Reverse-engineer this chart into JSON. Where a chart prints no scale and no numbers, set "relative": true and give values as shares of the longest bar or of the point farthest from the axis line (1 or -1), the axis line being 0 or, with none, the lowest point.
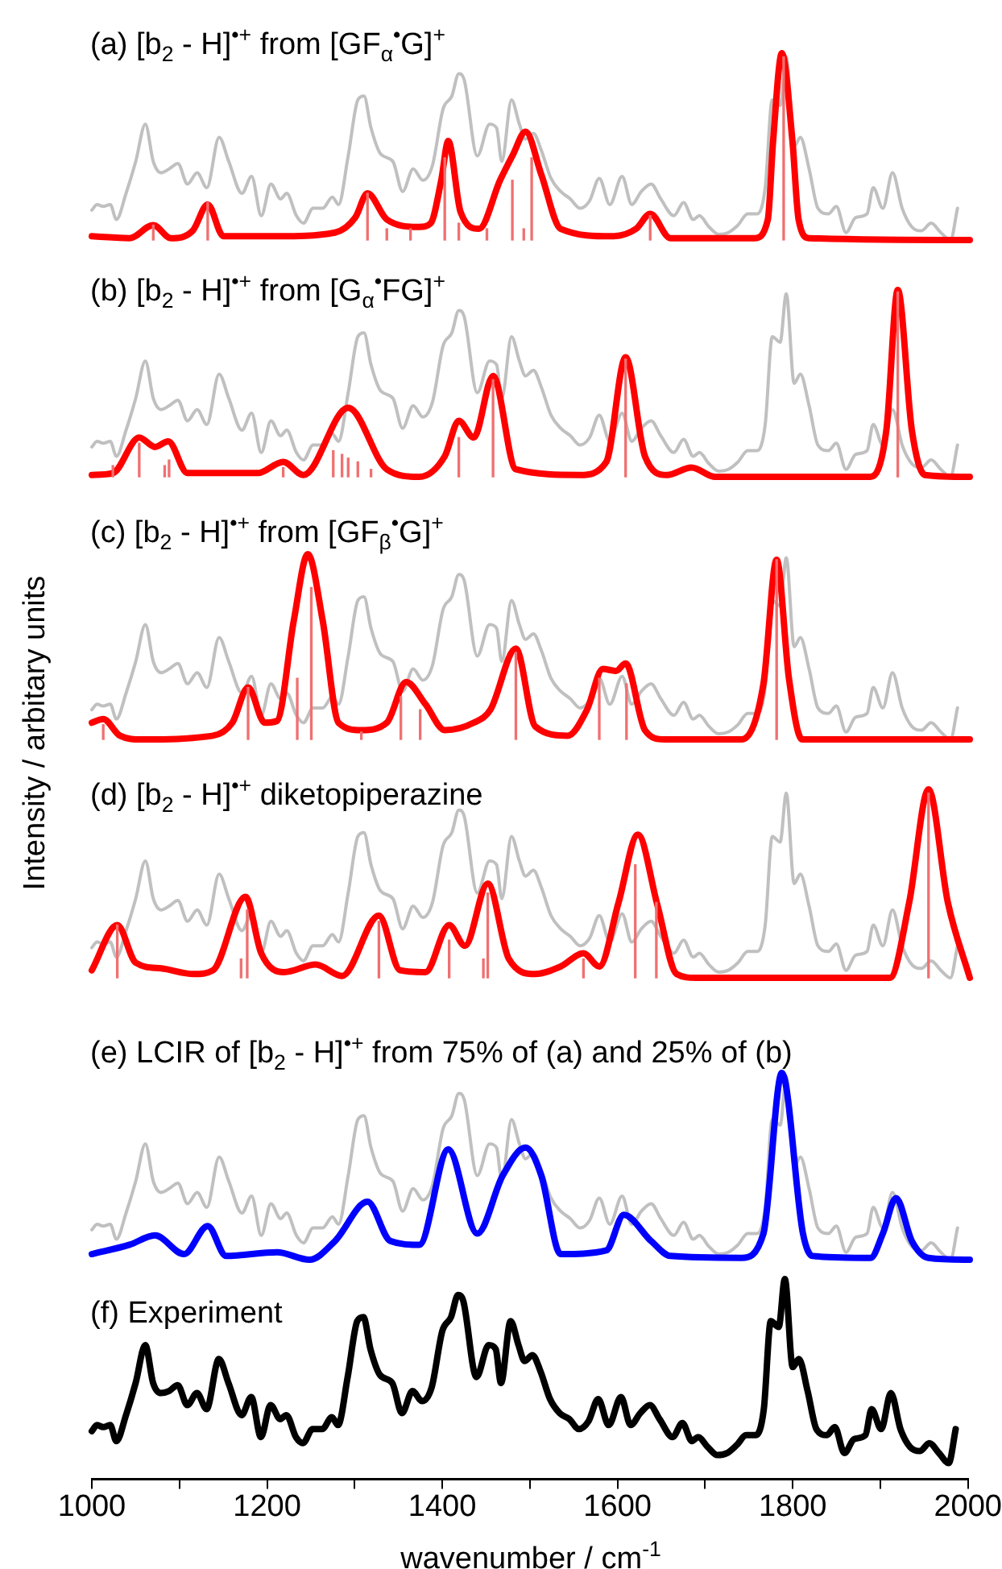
{
  "chart_data": [
    {
      "type": "line",
      "title": "(a) [b$_{2}$ - H]$^{•+}$ from [GF$_{α}$$^{•}$G]$^{+}$",
      "relative": true,
      "xlim": [
        1000,
        2000
      ],
      "tick_labels": false,
      "grid": false,
      "legend": false,
      "marker": "none",
      "series": [
        {
          "color": "#c0c0c0",
          "x": [
            1000,
            1006,
            1013,
            1021,
            1028,
            1039,
            1050,
            1061,
            1070,
            1079,
            1088,
            1098,
            1109,
            1120,
            1131,
            1145,
            1156,
            1171,
            1182,
            1193,
            1204,
            1215,
            1222,
            1233,
            1241,
            1252,
            1263,
            1274,
            1281,
            1292,
            1303,
            1310,
            1318,
            1329,
            1343,
            1354,
            1366,
            1377,
            1388,
            1400,
            1410,
            1418,
            1424,
            1439,
            1453,
            1461,
            1467,
            1478,
            1487,
            1494,
            1503,
            1512,
            1523,
            1534,
            1545,
            1556,
            1567,
            1578,
            1590,
            1604,
            1615,
            1626,
            1637,
            1648,
            1663,
            1674,
            1685,
            1692,
            1703,
            1714,
            1725,
            1736,
            1747,
            1758,
            1767,
            1775,
            1784,
            1791,
            1800,
            1807,
            1817,
            1827,
            1839,
            1848,
            1859,
            1870,
            1883,
            1890,
            1901,
            1912,
            1923,
            1934,
            1945,
            1956,
            1967,
            1978,
            1986
          ],
          "values": [
            0.16,
            0.19,
            0.18,
            0.19,
            0.11,
            0.25,
            0.42,
            0.62,
            0.42,
            0.36,
            0.38,
            0.41,
            0.3,
            0.36,
            0.28,
            0.55,
            0.42,
            0.25,
            0.34,
            0.13,
            0.3,
            0.22,
            0.25,
            0.13,
            0.09,
            0.17,
            0.17,
            0.23,
            0.19,
            0.45,
            0.75,
            0.77,
            0.6,
            0.46,
            0.42,
            0.26,
            0.38,
            0.32,
            0.4,
            0.7,
            0.77,
            0.89,
            0.86,
            0.45,
            0.62,
            0.6,
            0.42,
            0.75,
            0.62,
            0.54,
            0.57,
            0.48,
            0.33,
            0.26,
            0.22,
            0.17,
            0.21,
            0.33,
            0.19,
            0.34,
            0.19,
            0.26,
            0.3,
            0.22,
            0.13,
            0.2,
            0.11,
            0.13,
            0.07,
            0.03,
            0.04,
            0.08,
            0.14,
            0.14,
            0.28,
            0.75,
            0.72,
            0.98,
            0.5,
            0.55,
            0.38,
            0.17,
            0.14,
            0.18,
            0.04,
            0.12,
            0.14,
            0.28,
            0.17,
            0.36,
            0.17,
            0.07,
            0.05,
            0.09,
            0.04,
            0,
            0.17
          ]
        },
        {
          "type": "bar",
          "color": "#f07070",
          "x": [
            1070,
            1132,
            1314,
            1336,
            1363,
            1402,
            1418,
            1450,
            1479,
            1492,
            1501,
            1636,
            1788
          ],
          "values": [
            0.08,
            0.2,
            0.25,
            0.06,
            0.06,
            0.44,
            0.09,
            0.06,
            0.32,
            0.06,
            0.44,
            0.13,
            0.98
          ]
        },
        {
          "color": "#ff0000",
          "x": [
            1000,
            1043,
            1070,
            1090,
            1115,
            1132,
            1150,
            1211,
            1277,
            1300,
            1314,
            1336,
            1373,
            1386,
            1398,
            1406,
            1420,
            1441,
            1465,
            1480,
            1494,
            1512,
            1534,
            1593,
            1620,
            1636,
            1659,
            1755,
            1770,
            1776,
            1786,
            1798,
            1805,
            1817,
            2000
          ],
          "values": [
            0.02,
            0.01,
            0.08,
            0.01,
            0.05,
            0.19,
            0.02,
            0.02,
            0.04,
            0.12,
            0.25,
            0.11,
            0.07,
            0.09,
            0.32,
            0.53,
            0.15,
            0.06,
            0.32,
            0.46,
            0.58,
            0.35,
            0.06,
            0.02,
            0.06,
            0.14,
            0.01,
            0.01,
            0.11,
            0.53,
            1,
            0.53,
            0.11,
            0.01,
            0
          ]
        }
      ]
    },
    {
      "type": "line",
      "title": "(b) [b$_{2}$ - H]$^{•+}$ from [G$_{α}$$^{•}$FG]$^{+}$",
      "relative": true,
      "xlim": [
        1000,
        2000
      ],
      "tick_labels": false,
      "grid": false,
      "legend": false,
      "marker": "none",
      "series": [
        {
          "color": "#c0c0c0",
          "x": [
            1000,
            1006,
            1013,
            1021,
            1028,
            1039,
            1050,
            1061,
            1070,
            1079,
            1088,
            1098,
            1109,
            1120,
            1131,
            1145,
            1156,
            1171,
            1182,
            1193,
            1204,
            1215,
            1222,
            1233,
            1241,
            1252,
            1263,
            1274,
            1281,
            1292,
            1303,
            1310,
            1318,
            1329,
            1343,
            1354,
            1366,
            1377,
            1388,
            1400,
            1410,
            1418,
            1424,
            1439,
            1453,
            1461,
            1467,
            1478,
            1487,
            1494,
            1503,
            1512,
            1523,
            1534,
            1545,
            1556,
            1567,
            1578,
            1590,
            1604,
            1615,
            1626,
            1637,
            1648,
            1663,
            1674,
            1685,
            1692,
            1703,
            1714,
            1725,
            1736,
            1747,
            1758,
            1767,
            1775,
            1784,
            1791,
            1800,
            1807,
            1817,
            1827,
            1839,
            1848,
            1859,
            1870,
            1883,
            1890,
            1901,
            1912,
            1923,
            1934,
            1945,
            1956,
            1967,
            1978,
            1986
          ],
          "values": [
            0.16,
            0.19,
            0.18,
            0.19,
            0.11,
            0.25,
            0.42,
            0.62,
            0.42,
            0.36,
            0.38,
            0.41,
            0.3,
            0.36,
            0.28,
            0.55,
            0.42,
            0.25,
            0.34,
            0.13,
            0.3,
            0.22,
            0.25,
            0.13,
            0.09,
            0.17,
            0.17,
            0.23,
            0.19,
            0.45,
            0.75,
            0.77,
            0.6,
            0.46,
            0.42,
            0.26,
            0.38,
            0.32,
            0.4,
            0.7,
            0.77,
            0.89,
            0.86,
            0.45,
            0.62,
            0.6,
            0.42,
            0.75,
            0.62,
            0.54,
            0.57,
            0.48,
            0.33,
            0.26,
            0.22,
            0.17,
            0.21,
            0.33,
            0.19,
            0.34,
            0.19,
            0.26,
            0.3,
            0.22,
            0.13,
            0.2,
            0.11,
            0.13,
            0.07,
            0.03,
            0.04,
            0.08,
            0.14,
            0.14,
            0.28,
            0.75,
            0.72,
            0.98,
            0.5,
            0.55,
            0.38,
            0.17,
            0.14,
            0.18,
            0.04,
            0.12,
            0.14,
            0.28,
            0.17,
            0.36,
            0.17,
            0.07,
            0.05,
            0.09,
            0.04,
            0,
            0.17
          ]
        },
        {
          "type": "bar",
          "color": "#f07070",
          "x": [
            1024,
            1054,
            1083,
            1088,
            1218,
            1275,
            1285,
            1292,
            1303,
            1318,
            1418,
            1457,
            1608,
            1918
          ],
          "values": [
            0.06,
            0.18,
            0.06,
            0.09,
            0.05,
            0.14,
            0.12,
            0.1,
            0.08,
            0.04,
            0.21,
            0.52,
            0.63,
            0.99
          ]
        },
        {
          "color": "#ff0000",
          "x": [
            1000,
            1024,
            1054,
            1072,
            1087,
            1109,
            1189,
            1218,
            1241,
            1292,
            1336,
            1373,
            1402,
            1418,
            1435,
            1457,
            1483,
            1556,
            1586,
            1608,
            1630,
            1655,
            1683,
            1710,
            1887,
            1905,
            1918,
            1934,
            1949,
            2000
          ],
          "values": [
            0.01,
            0.02,
            0.21,
            0.16,
            0.19,
            0.02,
            0.02,
            0.08,
            0.01,
            0.37,
            0.04,
            0,
            0.11,
            0.3,
            0.21,
            0.54,
            0.04,
            0.01,
            0.08,
            0.64,
            0.11,
            0.01,
            0.05,
            0,
            0,
            0.25,
            1,
            0.25,
            0.01,
            0
          ]
        }
      ]
    },
    {
      "type": "line",
      "title": "(c) [b$_{2}$ - H]$^{•+}$ from [GF$_{β}$$^{•}$G]$^{+}$",
      "ylabel": "Intensity / arbitary units",
      "relative": true,
      "xlim": [
        1000,
        2000
      ],
      "tick_labels": false,
      "grid": false,
      "legend": false,
      "marker": "none",
      "series": [
        {
          "color": "#c0c0c0",
          "x": [
            1000,
            1006,
            1013,
            1021,
            1028,
            1039,
            1050,
            1061,
            1070,
            1079,
            1088,
            1098,
            1109,
            1120,
            1131,
            1145,
            1156,
            1171,
            1182,
            1193,
            1204,
            1215,
            1222,
            1233,
            1241,
            1252,
            1263,
            1274,
            1281,
            1292,
            1303,
            1310,
            1318,
            1329,
            1343,
            1354,
            1366,
            1377,
            1388,
            1400,
            1410,
            1418,
            1424,
            1439,
            1453,
            1461,
            1467,
            1478,
            1487,
            1494,
            1503,
            1512,
            1523,
            1534,
            1545,
            1556,
            1567,
            1578,
            1590,
            1604,
            1615,
            1626,
            1637,
            1648,
            1663,
            1674,
            1685,
            1692,
            1703,
            1714,
            1725,
            1736,
            1747,
            1758,
            1767,
            1775,
            1784,
            1791,
            1800,
            1807,
            1817,
            1827,
            1839,
            1848,
            1859,
            1870,
            1883,
            1890,
            1901,
            1912,
            1923,
            1934,
            1945,
            1956,
            1967,
            1978,
            1986
          ],
          "values": [
            0.16,
            0.19,
            0.18,
            0.19,
            0.11,
            0.25,
            0.42,
            0.62,
            0.42,
            0.36,
            0.38,
            0.41,
            0.3,
            0.36,
            0.28,
            0.55,
            0.42,
            0.25,
            0.34,
            0.13,
            0.3,
            0.22,
            0.25,
            0.13,
            0.09,
            0.17,
            0.17,
            0.23,
            0.19,
            0.45,
            0.75,
            0.77,
            0.6,
            0.46,
            0.42,
            0.26,
            0.38,
            0.32,
            0.4,
            0.7,
            0.77,
            0.89,
            0.86,
            0.45,
            0.62,
            0.6,
            0.42,
            0.75,
            0.62,
            0.54,
            0.57,
            0.48,
            0.33,
            0.26,
            0.22,
            0.17,
            0.21,
            0.33,
            0.19,
            0.34,
            0.19,
            0.26,
            0.3,
            0.22,
            0.13,
            0.2,
            0.11,
            0.13,
            0.07,
            0.03,
            0.04,
            0.08,
            0.14,
            0.14,
            0.28,
            0.75,
            0.72,
            0.98,
            0.5,
            0.55,
            0.38,
            0.17,
            0.14,
            0.18,
            0.04,
            0.12,
            0.14,
            0.28,
            0.17,
            0.36,
            0.17,
            0.07,
            0.05,
            0.09,
            0.04,
            0,
            0.17
          ]
        },
        {
          "type": "bar",
          "color": "#f07070",
          "x": [
            1013,
            1178,
            1234,
            1250,
            1307,
            1352,
            1374,
            1483,
            1578,
            1609,
            1780
          ],
          "values": [
            0.08,
            0.28,
            0.33,
            0.82,
            0.04,
            0.23,
            0.16,
            0.47,
            0.33,
            0.3,
            0.97
          ]
        },
        {
          "color": "#ff0000",
          "x": [
            1000,
            1013,
            1032,
            1057,
            1138,
            1160,
            1178,
            1197,
            1211,
            1230,
            1246,
            1263,
            1281,
            1307,
            1336,
            1358,
            1380,
            1402,
            1435,
            1454,
            1483,
            1505,
            1542,
            1564,
            1582,
            1597,
            1608,
            1630,
            1652,
            1740,
            1765,
            1780,
            1794,
            1809,
            2000
          ],
          "values": [
            0.09,
            0.11,
            0.02,
            0,
            0.02,
            0.09,
            0.28,
            0.09,
            0.1,
            0.64,
            1,
            0.64,
            0.09,
            0.05,
            0.09,
            0.31,
            0.19,
            0.05,
            0.09,
            0.16,
            0.49,
            0.07,
            0.02,
            0.16,
            0.38,
            0.37,
            0.41,
            0.05,
            0,
            0,
            0.3,
            0.97,
            0.33,
            0,
            0
          ]
        }
      ]
    },
    {
      "type": "line",
      "title": "(d) [b$_{2}$ - H]$^{•+}$ diketopiperazine",
      "relative": true,
      "xlim": [
        1000,
        2000
      ],
      "tick_labels": false,
      "grid": false,
      "legend": false,
      "marker": "none",
      "series": [
        {
          "color": "#c0c0c0",
          "x": [
            1000,
            1006,
            1013,
            1021,
            1028,
            1039,
            1050,
            1061,
            1070,
            1079,
            1088,
            1098,
            1109,
            1120,
            1131,
            1145,
            1156,
            1171,
            1182,
            1193,
            1204,
            1215,
            1222,
            1233,
            1241,
            1252,
            1263,
            1274,
            1281,
            1292,
            1303,
            1310,
            1318,
            1329,
            1343,
            1354,
            1366,
            1377,
            1388,
            1400,
            1410,
            1418,
            1424,
            1439,
            1453,
            1461,
            1467,
            1478,
            1487,
            1494,
            1503,
            1512,
            1523,
            1534,
            1545,
            1556,
            1567,
            1578,
            1590,
            1604,
            1615,
            1626,
            1637,
            1648,
            1663,
            1674,
            1685,
            1692,
            1703,
            1714,
            1725,
            1736,
            1747,
            1758,
            1767,
            1775,
            1784,
            1791,
            1800,
            1807,
            1817,
            1827,
            1839,
            1848,
            1859,
            1870,
            1883,
            1890,
            1901,
            1912,
            1923,
            1934,
            1945,
            1956,
            1967,
            1978,
            1986
          ],
          "values": [
            0.16,
            0.19,
            0.18,
            0.19,
            0.11,
            0.25,
            0.42,
            0.62,
            0.42,
            0.36,
            0.38,
            0.41,
            0.3,
            0.36,
            0.28,
            0.55,
            0.42,
            0.25,
            0.34,
            0.13,
            0.3,
            0.22,
            0.25,
            0.13,
            0.09,
            0.17,
            0.17,
            0.23,
            0.19,
            0.45,
            0.75,
            0.77,
            0.6,
            0.46,
            0.42,
            0.26,
            0.38,
            0.32,
            0.4,
            0.7,
            0.77,
            0.89,
            0.86,
            0.45,
            0.62,
            0.6,
            0.42,
            0.75,
            0.62,
            0.54,
            0.57,
            0.48,
            0.33,
            0.26,
            0.22,
            0.17,
            0.21,
            0.33,
            0.19,
            0.34,
            0.19,
            0.26,
            0.3,
            0.22,
            0.13,
            0.2,
            0.11,
            0.13,
            0.07,
            0.03,
            0.04,
            0.08,
            0.14,
            0.14,
            0.28,
            0.75,
            0.72,
            0.98,
            0.5,
            0.55,
            0.38,
            0.17,
            0.14,
            0.18,
            0.04,
            0.12,
            0.14,
            0.28,
            0.17,
            0.36,
            0.17,
            0.07,
            0.05,
            0.09,
            0.04,
            0,
            0.17
          ]
        },
        {
          "type": "bar",
          "color": "#f07070",
          "x": [
            1029,
            1170,
            1177,
            1327,
            1407,
            1446,
            1451,
            1560,
            1619,
            1643,
            1953
          ],
          "values": [
            0.28,
            0.1,
            0.36,
            0.3,
            0.2,
            0.1,
            0.45,
            0.1,
            0.6,
            0.4,
            0.98
          ]
        },
        {
          "color": "#ff0000",
          "x": [
            1000,
            1029,
            1050,
            1079,
            1116,
            1138,
            1175,
            1193,
            1219,
            1255,
            1285,
            1327,
            1351,
            1380,
            1407,
            1425,
            1451,
            1475,
            1505,
            1534,
            1560,
            1578,
            1600,
            1622,
            1644,
            1666,
            1688,
            1909,
            1931,
            1953,
            1975,
            2000
          ],
          "values": [
            0.04,
            0.28,
            0.08,
            0.05,
            0.02,
            0.04,
            0.43,
            0.13,
            0.03,
            0.07,
            0.01,
            0.33,
            0.04,
            0.03,
            0.28,
            0.17,
            0.5,
            0.1,
            0.02,
            0.06,
            0.13,
            0.06,
            0.4,
            0.76,
            0.39,
            0.02,
            0,
            0,
            0.4,
            1,
            0.4,
            0
          ]
        }
      ]
    },
    {
      "type": "line",
      "title": "(e) LCIR of [b$_{2}$ - H]$^{•+}$ from 75% of (a) and 25% of (b)",
      "relative": true,
      "xlim": [
        1000,
        2000
      ],
      "tick_labels": false,
      "grid": false,
      "legend": false,
      "marker": "none",
      "series": [
        {
          "color": "#c0c0c0",
          "x": [
            1000,
            1006,
            1013,
            1021,
            1028,
            1039,
            1050,
            1061,
            1070,
            1079,
            1088,
            1098,
            1109,
            1120,
            1131,
            1145,
            1156,
            1171,
            1182,
            1193,
            1204,
            1215,
            1222,
            1233,
            1241,
            1252,
            1263,
            1274,
            1281,
            1292,
            1303,
            1310,
            1318,
            1329,
            1343,
            1354,
            1366,
            1377,
            1388,
            1400,
            1410,
            1418,
            1424,
            1439,
            1453,
            1461,
            1467,
            1478,
            1487,
            1494,
            1503,
            1512,
            1523,
            1534,
            1545,
            1556,
            1567,
            1578,
            1590,
            1604,
            1615,
            1626,
            1637,
            1648,
            1663,
            1674,
            1685,
            1692,
            1703,
            1714,
            1725,
            1736,
            1747,
            1758,
            1767,
            1775,
            1784,
            1791,
            1800,
            1807,
            1817,
            1827,
            1839,
            1848,
            1859,
            1870,
            1883,
            1890,
            1901,
            1912,
            1923,
            1934,
            1945,
            1956,
            1967,
            1978,
            1986
          ],
          "values": [
            0.16,
            0.19,
            0.18,
            0.19,
            0.11,
            0.25,
            0.42,
            0.62,
            0.42,
            0.36,
            0.38,
            0.41,
            0.3,
            0.36,
            0.28,
            0.55,
            0.42,
            0.25,
            0.34,
            0.13,
            0.3,
            0.22,
            0.25,
            0.13,
            0.09,
            0.17,
            0.17,
            0.23,
            0.19,
            0.45,
            0.75,
            0.77,
            0.6,
            0.46,
            0.42,
            0.26,
            0.38,
            0.32,
            0.4,
            0.7,
            0.77,
            0.89,
            0.86,
            0.45,
            0.62,
            0.6,
            0.42,
            0.75,
            0.62,
            0.54,
            0.57,
            0.48,
            0.33,
            0.26,
            0.22,
            0.17,
            0.21,
            0.33,
            0.19,
            0.34,
            0.19,
            0.26,
            0.3,
            0.22,
            0.13,
            0.2,
            0.11,
            0.13,
            0.07,
            0.03,
            0.04,
            0.08,
            0.14,
            0.14,
            0.28,
            0.75,
            0.72,
            0.98,
            0.5,
            0.55,
            0.38,
            0.17,
            0.14,
            0.18,
            0.04,
            0.12,
            0.14,
            0.28,
            0.17,
            0.36,
            0.17,
            0.07,
            0.05,
            0.09,
            0.04,
            0,
            0.17
          ]
        },
        {
          "color": "#0000ff",
          "x": [
            1000,
            1043,
            1072,
            1105,
            1132,
            1153,
            1211,
            1248,
            1277,
            1314,
            1340,
            1373,
            1406,
            1439,
            1468,
            1494,
            1512,
            1534,
            1586,
            1606,
            1637,
            1659,
            1740,
            1765,
            1786,
            1810,
            1821,
            1887,
            1901,
            1916,
            1934,
            1953,
            2000
          ],
          "values": [
            0.03,
            0.08,
            0.13,
            0.03,
            0.18,
            0.02,
            0.04,
            0,
            0.1,
            0.31,
            0.1,
            0.08,
            0.59,
            0.14,
            0.45,
            0.6,
            0.45,
            0.03,
            0.05,
            0.24,
            0.1,
            0.02,
            0.01,
            0.14,
            1,
            0.14,
            0.02,
            0.01,
            0.14,
            0.33,
            0.1,
            0.01,
            0
          ]
        }
      ]
    },
    {
      "type": "line",
      "title": "(f) Experiment",
      "xlabel": "wavenumber / cm$^{-1}$",
      "relative": true,
      "xlim": [
        1000,
        2000
      ],
      "xticks": [
        1000,
        {
          "value": 1100,
          "label": null
        },
        1200,
        {
          "value": 1300,
          "label": null
        },
        1400,
        {
          "value": 1500,
          "label": null
        },
        1600,
        {
          "value": 1700,
          "label": null
        },
        1800,
        {
          "value": 1900,
          "label": null
        },
        2000
      ],
      "tick_labels": "x",
      "grid": false,
      "legend": false,
      "marker": "none",
      "series": [
        {
          "color": "#000000",
          "x": [
            1000,
            1006,
            1013,
            1021,
            1028,
            1039,
            1050,
            1061,
            1070,
            1079,
            1088,
            1098,
            1109,
            1120,
            1131,
            1145,
            1156,
            1171,
            1182,
            1193,
            1204,
            1215,
            1222,
            1233,
            1241,
            1252,
            1263,
            1274,
            1281,
            1292,
            1303,
            1310,
            1318,
            1329,
            1343,
            1354,
            1366,
            1377,
            1388,
            1400,
            1410,
            1418,
            1424,
            1439,
            1453,
            1461,
            1467,
            1478,
            1487,
            1494,
            1503,
            1512,
            1523,
            1534,
            1545,
            1556,
            1567,
            1578,
            1590,
            1604,
            1615,
            1626,
            1637,
            1648,
            1663,
            1674,
            1685,
            1692,
            1703,
            1714,
            1725,
            1736,
            1747,
            1758,
            1767,
            1775,
            1784,
            1791,
            1800,
            1807,
            1817,
            1827,
            1839,
            1848,
            1859,
            1870,
            1883,
            1890,
            1901,
            1912,
            1923,
            1934,
            1945,
            1956,
            1967,
            1978,
            1986
          ],
          "values": [
            0.24,
            0.27,
            0.26,
            0.27,
            0.19,
            0.32,
            0.48,
            0.67,
            0.48,
            0.43,
            0.44,
            0.47,
            0.37,
            0.43,
            0.35,
            0.6,
            0.48,
            0.32,
            0.41,
            0.21,
            0.37,
            0.3,
            0.32,
            0.21,
            0.18,
            0.25,
            0.25,
            0.31,
            0.27,
            0.51,
            0.79,
            0.81,
            0.65,
            0.52,
            0.48,
            0.33,
            0.44,
            0.39,
            0.46,
            0.74,
            0.81,
            0.92,
            0.89,
            0.51,
            0.67,
            0.65,
            0.48,
            0.79,
            0.67,
            0.59,
            0.62,
            0.54,
            0.4,
            0.33,
            0.3,
            0.25,
            0.29,
            0.4,
            0.27,
            0.41,
            0.27,
            0.33,
            0.37,
            0.3,
            0.21,
            0.28,
            0.19,
            0.21,
            0.16,
            0.12,
            0.13,
            0.17,
            0.22,
            0.22,
            0.35,
            0.79,
            0.76,
            1,
            0.56,
            0.6,
            0.44,
            0.25,
            0.22,
            0.26,
            0.13,
            0.2,
            0.22,
            0.35,
            0.25,
            0.43,
            0.25,
            0.16,
            0.14,
            0.18,
            0.13,
            0.08,
            0.25
          ]
        }
      ]
    }
  ]
}
